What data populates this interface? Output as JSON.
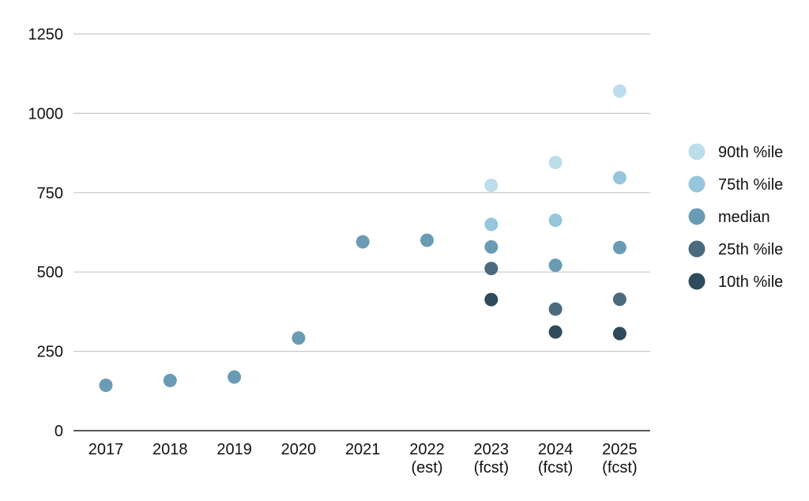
{
  "chart_data": {
    "type": "scatter",
    "title": "",
    "xlabel": "",
    "ylabel": "",
    "categories": [
      [
        "2017"
      ],
      [
        "2018"
      ],
      [
        "2019"
      ],
      [
        "2020"
      ],
      [
        "2021"
      ],
      [
        "2022",
        "(est)"
      ],
      [
        "2023",
        "(fcst)"
      ],
      [
        "2024",
        "(fcst)"
      ],
      [
        "2025",
        "(fcst)"
      ]
    ],
    "y_ticks": [
      "0",
      "250",
      "500",
      "750",
      "1000",
      "1250"
    ],
    "y_tick_values": [
      0,
      250,
      500,
      750,
      1000,
      1250
    ],
    "ylim": [
      0,
      1250
    ],
    "grid": true,
    "legend_position": "right",
    "series": [
      {
        "name": "90th %ile",
        "color": "#BCDDEA",
        "values": [
          null,
          null,
          null,
          null,
          null,
          null,
          773,
          845,
          1070
        ]
      },
      {
        "name": "75th %ile",
        "color": "#95C6DC",
        "values": [
          null,
          null,
          null,
          null,
          null,
          null,
          650,
          663,
          797
        ]
      },
      {
        "name": "median",
        "color": "#6A9BB5",
        "values": [
          143,
          158,
          169,
          292,
          595,
          600,
          579,
          521,
          577
        ]
      },
      {
        "name": "25th %ile",
        "color": "#4B6A7F",
        "values": [
          null,
          null,
          null,
          null,
          null,
          null,
          511,
          383,
          414
        ]
      },
      {
        "name": "10th %ile",
        "color": "#2F4A5B",
        "values": [
          null,
          null,
          null,
          null,
          null,
          null,
          413,
          311,
          306
        ]
      }
    ]
  }
}
